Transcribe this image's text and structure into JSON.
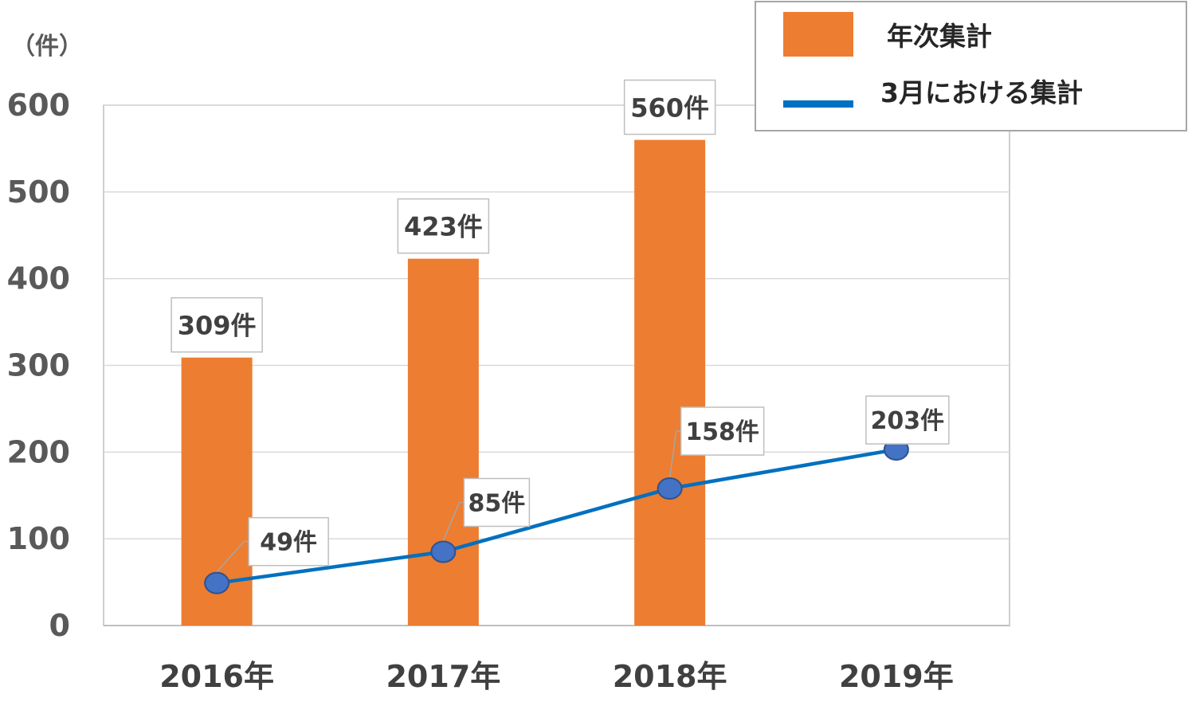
{
  "chart_data": {
    "type": "bar",
    "categories": [
      "2016年",
      "2017年",
      "2018年",
      "2019年"
    ],
    "series": [
      {
        "name": "年次集計",
        "type": "bar",
        "values": [
          309,
          423,
          560,
          null
        ],
        "labels": [
          "309件",
          "423件",
          "560件",
          ""
        ],
        "color": "#ED7D31"
      },
      {
        "name": "3月における集計",
        "type": "line",
        "values": [
          49,
          85,
          158,
          203
        ],
        "labels": [
          "49件",
          "85件",
          "158件",
          "203件"
        ],
        "color": "#0070C0",
        "marker_color": "#4472C4"
      }
    ],
    "ylabel": "（件）",
    "ylim": [
      0,
      600
    ],
    "yticks": [
      0,
      100,
      200,
      300,
      400,
      500,
      600
    ],
    "grid": true,
    "legend_position": "top-right"
  }
}
